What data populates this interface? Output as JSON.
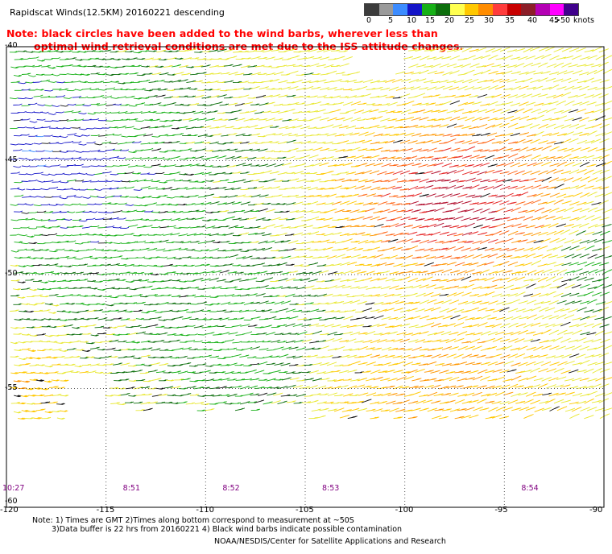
{
  "header": {
    "title": "Rapidscat Winds(12.5KM) 20160221 descending",
    "note_line1": "Note: black circles have been added to the wind barbs, wherever less than",
    "note_line2": "optimal wind retrieval conditions are met due to the ISS attitude changes."
  },
  "color_scale": {
    "labels": [
      "0",
      "5",
      "10",
      "15",
      "20",
      "25",
      "30",
      "35",
      "40",
      "45",
      ">50"
    ],
    "unit": "knots",
    "colors": [
      "#3c3c3c",
      "#9a9a9a",
      "#3c8cff",
      "#1414c8",
      "#16b016",
      "#0c6e0c",
      "#ffff50",
      "#ffc800",
      "#ff8c00",
      "#ff3c3c",
      "#c80000",
      "#8c1e28",
      "#b400b4",
      "#ff00ff",
      "#40008c"
    ]
  },
  "chart_data": {
    "type": "wind-barb map",
    "x_axis": {
      "ticks": [
        "-120",
        "-115",
        "-110",
        "-105",
        "-100",
        "-95",
        "-90"
      ],
      "range": [
        -120,
        -90
      ]
    },
    "y_axis": {
      "ticks": [
        "-40",
        "-45",
        "-50",
        "-55",
        "-60"
      ],
      "range": [
        -60,
        -40
      ]
    },
    "grid": "dotted",
    "time_labels": [
      {
        "text": "10:27",
        "lon": -120
      },
      {
        "text": "8:51",
        "lon": -115
      },
      {
        "text": "8:52",
        "lon": -110
      },
      {
        "text": "8:53",
        "lon": -105
      },
      {
        "text": "8:54",
        "lon": -95
      }
    ]
  },
  "footer": {
    "note1": "Note: 1) Times are GMT 2)Times along bottom correspond to measurement at ~50S",
    "note2": "3)Data buffer is 22 hrs from 20160221 4) Black wind barbs indicate possible contamination",
    "credit": "NOAA/NESDIS/Center for Satellite Applications and Research"
  }
}
